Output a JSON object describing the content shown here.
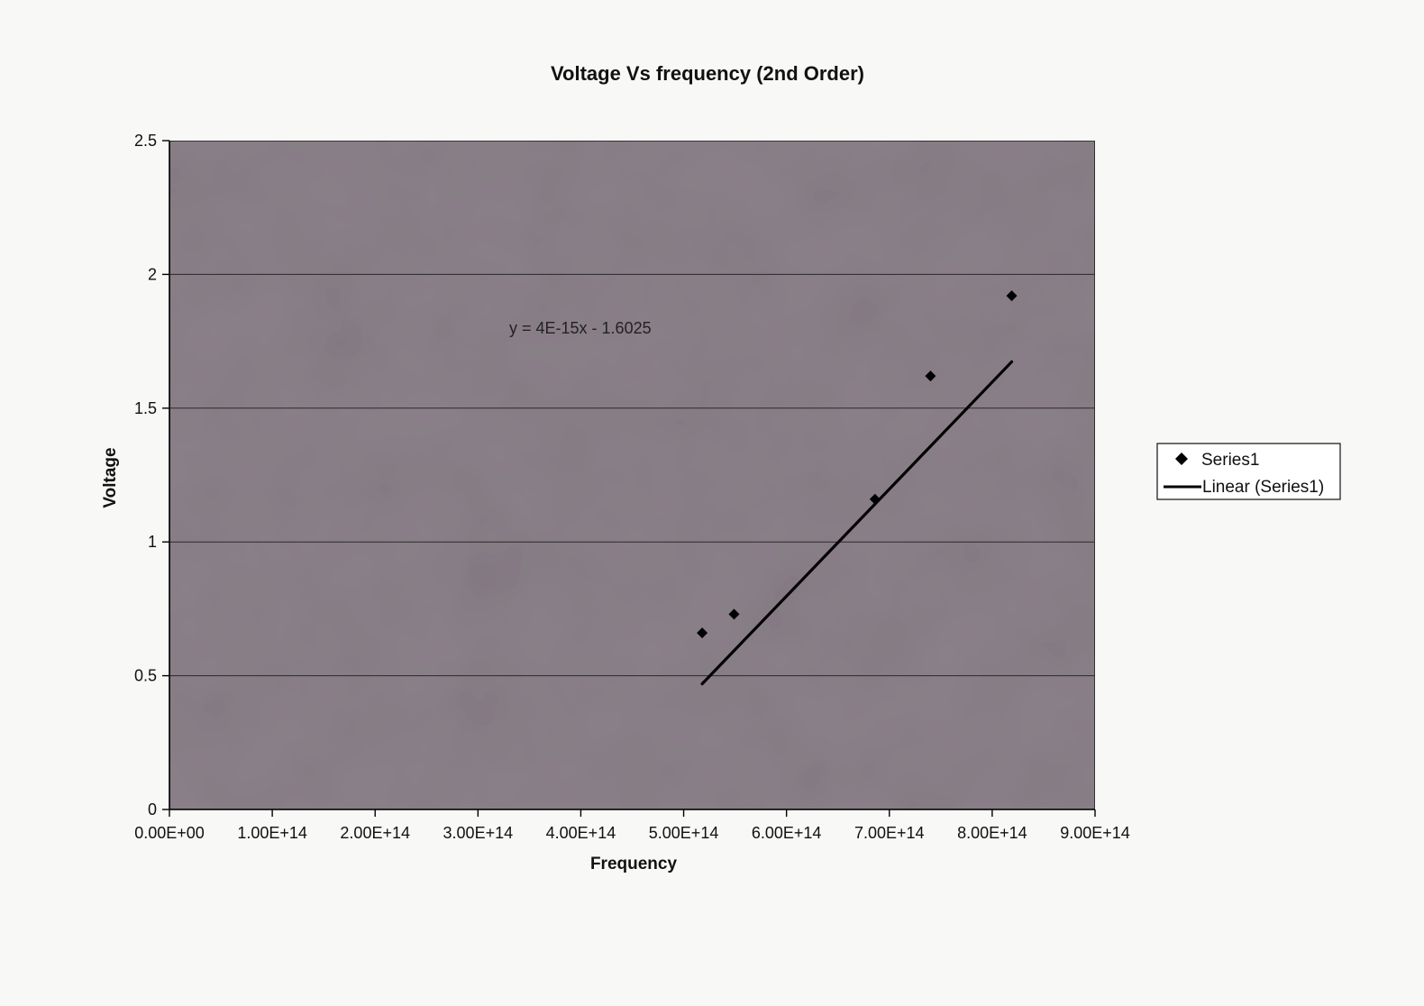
{
  "chart_data": {
    "type": "scatter",
    "title": "Voltage Vs frequency (2nd Order)",
    "xlabel": "Frequency",
    "ylabel": "Voltage",
    "xlim": [
      0,
      900000000000000
    ],
    "ylim": [
      0,
      2.5
    ],
    "x_ticks": [
      0,
      100000000000000,
      200000000000000,
      300000000000000,
      400000000000000,
      500000000000000,
      600000000000000,
      700000000000000,
      800000000000000,
      900000000000000
    ],
    "x_tick_labels": [
      "0.00E+00",
      "1.00E+14",
      "2.00E+14",
      "3.00E+14",
      "4.00E+14",
      "5.00E+14",
      "6.00E+14",
      "7.00E+14",
      "8.00E+14",
      "9.00E+14"
    ],
    "y_ticks": [
      0,
      0.5,
      1,
      1.5,
      2,
      2.5
    ],
    "y_tick_labels": [
      "0",
      "0.5",
      "1",
      "1.5",
      "2",
      "2.5"
    ],
    "grid": "horizontal",
    "legend_position": "right",
    "series": [
      {
        "name": "Series1",
        "marker": "diamond",
        "x": [
          518000000000000,
          549000000000000,
          686000000000000,
          740000000000000,
          819000000000000
        ],
        "y": [
          0.66,
          0.73,
          1.16,
          1.62,
          1.92
        ]
      }
    ],
    "trendline": {
      "name": "Linear (Series1)",
      "type": "linear",
      "equation": "y = 4E-15x - 1.6025",
      "x_range": [
        518000000000000,
        819000000000000
      ]
    },
    "colors": {
      "plot_background": "#8b8089",
      "page_background": "#f8f8f6",
      "marker": "#000000",
      "trendline": "#000000",
      "gridline": "#2a2a2a"
    }
  }
}
